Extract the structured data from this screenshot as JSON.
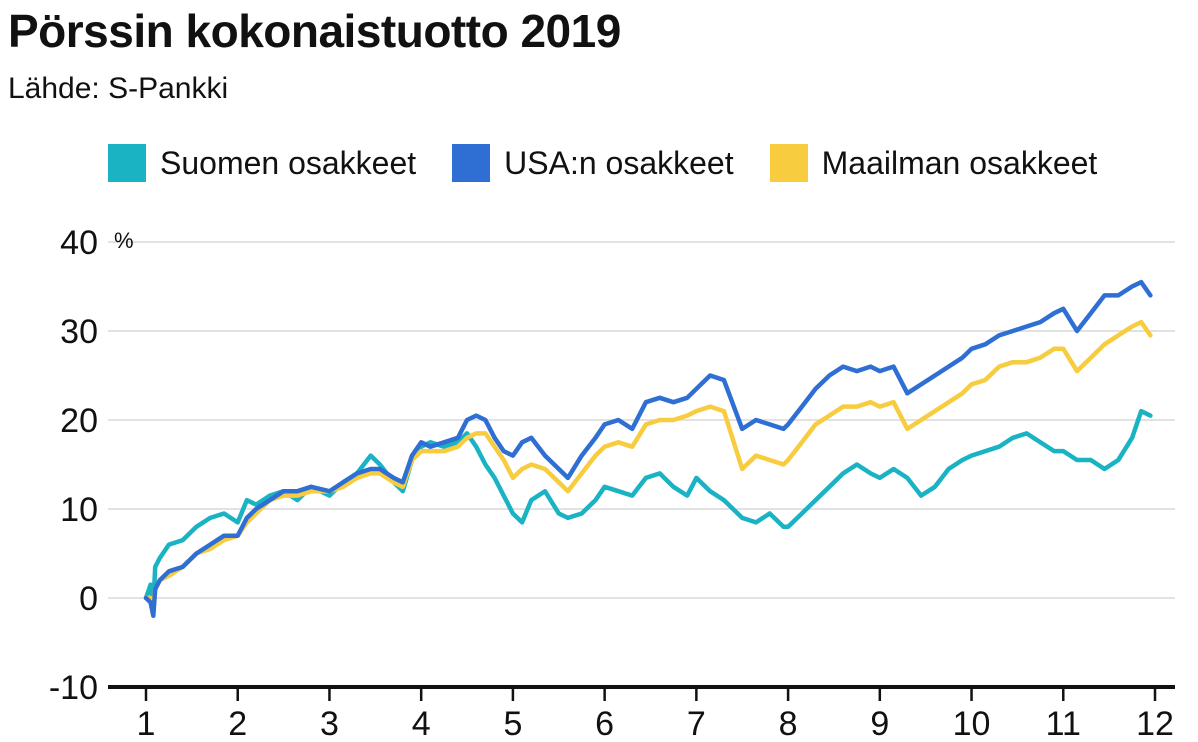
{
  "header": {
    "title": "Pörssin kokonaistuotto 2019",
    "subtitle": "Lähde: S-Pankki"
  },
  "chart_data": {
    "type": "line",
    "title": "Pörssin kokonaistuotto 2019",
    "subtitle": "Lähde: S-Pankki",
    "y_unit": "%",
    "ylim": [
      -10,
      40
    ],
    "xlim": [
      1,
      12
    ],
    "x_ticks": [
      "1",
      "2",
      "3",
      "4",
      "5",
      "6",
      "7",
      "8",
      "9",
      "10",
      "11",
      "12"
    ],
    "y_ticks": [
      "40",
      "30",
      "20",
      "10",
      "0",
      "-10"
    ],
    "grid": true,
    "legend_position": "top",
    "series": [
      {
        "name": "Suomen osakkeet",
        "color": "#1ab3c4",
        "x": [
          1.0,
          1.05,
          1.08,
          1.1,
          1.15,
          1.25,
          1.4,
          1.55,
          1.7,
          1.85,
          2.0,
          2.1,
          2.2,
          2.35,
          2.5,
          2.65,
          2.8,
          3.0,
          3.15,
          3.3,
          3.45,
          3.55,
          3.7,
          3.8,
          3.9,
          4.0,
          4.1,
          4.25,
          4.4,
          4.5,
          4.6,
          4.7,
          4.8,
          4.9,
          5.0,
          5.1,
          5.2,
          5.35,
          5.5,
          5.6,
          5.75,
          5.9,
          6.0,
          6.15,
          6.3,
          6.45,
          6.6,
          6.75,
          6.9,
          7.0,
          7.15,
          7.3,
          7.5,
          7.65,
          7.8,
          7.95,
          8.0,
          8.15,
          8.3,
          8.45,
          8.6,
          8.75,
          8.9,
          9.0,
          9.15,
          9.3,
          9.45,
          9.6,
          9.75,
          9.9,
          10.0,
          10.15,
          10.3,
          10.45,
          10.6,
          10.75,
          10.9,
          11.0,
          11.15,
          11.3,
          11.45,
          11.6,
          11.75,
          11.85,
          11.95
        ],
        "values": [
          0,
          1.5,
          -1,
          3.5,
          4.5,
          6,
          6.5,
          8,
          9,
          9.5,
          8.5,
          11,
          10.5,
          11.5,
          12,
          11,
          12.5,
          11.5,
          13,
          14,
          16,
          15,
          13,
          12,
          15.5,
          17,
          17.5,
          17,
          17.5,
          18.5,
          17,
          15,
          13.5,
          11.5,
          9.5,
          8.5,
          11,
          12,
          9.5,
          9,
          9.5,
          11,
          12.5,
          12,
          11.5,
          13.5,
          14,
          12.5,
          11.5,
          13.5,
          12,
          11,
          9,
          8.5,
          9.5,
          8,
          8,
          9.5,
          11,
          12.5,
          14,
          15,
          14,
          13.5,
          14.5,
          13.5,
          11.5,
          12.5,
          14.5,
          15.5,
          16,
          16.5,
          17,
          18,
          18.5,
          17.5,
          16.5,
          16.5,
          15.5,
          15.5,
          14.5,
          15.5,
          18,
          21,
          20.5
        ]
      },
      {
        "name": "USA:n osakkeet",
        "color": "#2f6fd4",
        "x": [
          1.0,
          1.05,
          1.08,
          1.1,
          1.15,
          1.25,
          1.4,
          1.55,
          1.7,
          1.85,
          2.0,
          2.1,
          2.2,
          2.35,
          2.5,
          2.65,
          2.8,
          3.0,
          3.15,
          3.3,
          3.45,
          3.55,
          3.7,
          3.8,
          3.9,
          4.0,
          4.1,
          4.25,
          4.4,
          4.5,
          4.6,
          4.7,
          4.8,
          4.9,
          5.0,
          5.1,
          5.2,
          5.35,
          5.5,
          5.6,
          5.75,
          5.9,
          6.0,
          6.15,
          6.3,
          6.45,
          6.6,
          6.75,
          6.9,
          7.0,
          7.15,
          7.3,
          7.5,
          7.65,
          7.8,
          7.95,
          8.0,
          8.15,
          8.3,
          8.45,
          8.6,
          8.75,
          8.9,
          9.0,
          9.15,
          9.3,
          9.45,
          9.6,
          9.75,
          9.9,
          10.0,
          10.15,
          10.3,
          10.45,
          10.6,
          10.75,
          10.9,
          11.0,
          11.15,
          11.3,
          11.45,
          11.6,
          11.75,
          11.85,
          11.95
        ],
        "values": [
          0,
          -0.5,
          -2,
          1,
          2,
          3,
          3.5,
          5,
          6,
          7,
          7,
          9,
          10,
          11,
          12,
          12,
          12.5,
          12,
          13,
          14,
          14.5,
          14.5,
          13.5,
          13,
          16,
          17.5,
          17,
          17.5,
          18,
          20,
          20.5,
          20,
          18,
          16.5,
          16,
          17.5,
          18,
          16,
          14.5,
          13.5,
          16,
          18,
          19.5,
          20,
          19,
          22,
          22.5,
          22,
          22.5,
          23.5,
          25,
          24.5,
          19,
          20,
          19.5,
          19,
          19.5,
          21.5,
          23.5,
          25,
          26,
          25.5,
          26,
          25.5,
          26,
          23,
          24,
          25,
          26,
          27,
          28,
          28.5,
          29.5,
          30,
          30.5,
          31,
          32,
          32.5,
          30,
          32,
          34,
          34,
          35,
          35.5,
          34
        ]
      },
      {
        "name": "Maailman osakkeet",
        "color": "#f7cc3e",
        "x": [
          1.0,
          1.05,
          1.08,
          1.1,
          1.15,
          1.25,
          1.4,
          1.55,
          1.7,
          1.85,
          2.0,
          2.1,
          2.2,
          2.35,
          2.5,
          2.65,
          2.8,
          3.0,
          3.15,
          3.3,
          3.45,
          3.55,
          3.7,
          3.8,
          3.9,
          4.0,
          4.1,
          4.25,
          4.4,
          4.5,
          4.6,
          4.7,
          4.8,
          4.9,
          5.0,
          5.1,
          5.2,
          5.35,
          5.5,
          5.6,
          5.75,
          5.9,
          6.0,
          6.15,
          6.3,
          6.45,
          6.6,
          6.75,
          6.9,
          7.0,
          7.15,
          7.3,
          7.5,
          7.65,
          7.8,
          7.95,
          8.0,
          8.15,
          8.3,
          8.45,
          8.6,
          8.75,
          8.9,
          9.0,
          9.15,
          9.3,
          9.45,
          9.6,
          9.75,
          9.9,
          10.0,
          10.15,
          10.3,
          10.45,
          10.6,
          10.75,
          10.9,
          11.0,
          11.15,
          11.3,
          11.45,
          11.6,
          11.75,
          11.85,
          11.95
        ],
        "values": [
          0,
          0,
          -1,
          1,
          2,
          2.5,
          3.5,
          5,
          5.5,
          6.5,
          7,
          8.5,
          9.5,
          11,
          11.5,
          11.5,
          12,
          12,
          12.5,
          13.5,
          14,
          14,
          13,
          12.5,
          15.5,
          16.5,
          16.5,
          16.5,
          17,
          18,
          18.5,
          18.5,
          17,
          15.5,
          13.5,
          14.5,
          15,
          14.5,
          13,
          12,
          14,
          16,
          17,
          17.5,
          17,
          19.5,
          20,
          20,
          20.5,
          21,
          21.5,
          21,
          14.5,
          16,
          15.5,
          15,
          15.5,
          17.5,
          19.5,
          20.5,
          21.5,
          21.5,
          22,
          21.5,
          22,
          19,
          20,
          21,
          22,
          23,
          24,
          24.5,
          26,
          26.5,
          26.5,
          27,
          28,
          28,
          25.5,
          27,
          28.5,
          29.5,
          30.5,
          31,
          29.5
        ]
      }
    ]
  }
}
